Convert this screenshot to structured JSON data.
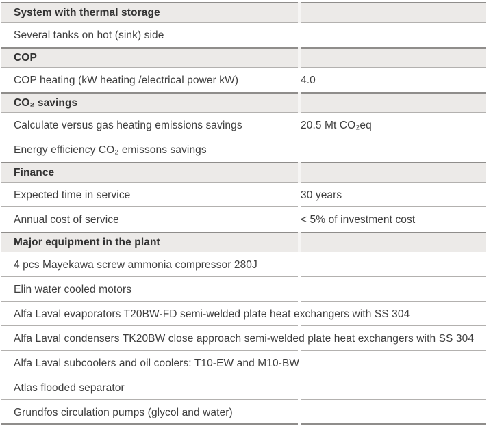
{
  "colors": {
    "section_bg": "#eceae8",
    "text": "#3e3e3e",
    "line_thin": "#b3b1af",
    "line_thick": "#8f8d8b"
  },
  "table": {
    "rows": [
      {
        "type": "section",
        "label": "System with thermal storage",
        "value": ""
      },
      {
        "type": "item",
        "label": "Several tanks on hot (sink) side",
        "value": ""
      },
      {
        "type": "section",
        "label": "COP",
        "value": ""
      },
      {
        "type": "item",
        "label": "COP heating (kW heating /electrical power kW)",
        "value": "4.0"
      },
      {
        "type": "section",
        "label": "CO₂ savings",
        "value": ""
      },
      {
        "type": "item",
        "label": "Calculate versus gas heating emissions savings",
        "value": "20.5 Mt CO₂eq"
      },
      {
        "type": "item",
        "label": "Energy efficiency CO₂ emissons savings",
        "value": ""
      },
      {
        "type": "section",
        "label": "Finance",
        "value": ""
      },
      {
        "type": "item",
        "label": "Expected time in service",
        "value": "30 years"
      },
      {
        "type": "item",
        "label": "Annual cost of service",
        "value": "< 5% of investment cost"
      },
      {
        "type": "section",
        "label": "Major equipment in the plant",
        "value": ""
      },
      {
        "type": "item",
        "label": "4 pcs Mayekawa screw ammonia compressor 280J",
        "value": ""
      },
      {
        "type": "item",
        "label": "Elin water cooled motors",
        "value": ""
      },
      {
        "type": "item",
        "label": "Alfa Laval evaporators T20BW-FD semi-welded plate heat exchangers with SS 304",
        "value": ""
      },
      {
        "type": "item",
        "label": "Alfa Laval condensers TK20BW close approach semi-welded plate heat exchangers with SS 304",
        "value": ""
      },
      {
        "type": "item",
        "label": "Alfa Laval subcoolers and oil coolers: T10-EW and M10-BW",
        "value": ""
      },
      {
        "type": "item",
        "label": "Atlas flooded separator",
        "value": ""
      },
      {
        "type": "item",
        "label": "Grundfos circulation pumps (glycol and water)",
        "value": ""
      }
    ]
  }
}
